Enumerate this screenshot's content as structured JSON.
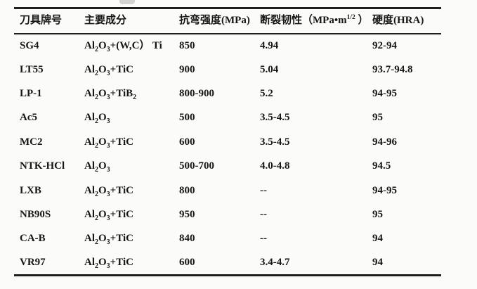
{
  "colors": {
    "background": "#fbfbf9",
    "text": "#161616",
    "line": "#1f1f1f",
    "artifact": "#c9c9c7"
  },
  "table": {
    "columns": [
      {
        "key": "brand",
        "label": "刀具牌号"
      },
      {
        "key": "composition",
        "label": "主要成分"
      },
      {
        "key": "strength",
        "label": "抗弯强度(MPa)"
      },
      {
        "key": "toughness",
        "label": "断裂韧性（MPa•m^1/2^ ）"
      },
      {
        "key": "hardness",
        "label": "硬度(HRA)"
      }
    ],
    "rows": [
      {
        "brand": "SG4",
        "composition": "Al~2~O~3~+(W,C） Ti",
        "strength": "850",
        "toughness": "4.94",
        "hardness": "92-94"
      },
      {
        "brand": "LT55",
        "composition": "Al~2~O~3~+TiC",
        "strength": "900",
        "toughness": "5.04",
        "hardness": "93.7-94.8"
      },
      {
        "brand": "LP-1",
        "composition": "Al~2~O~3~+TiB~2~",
        "strength": "800-900",
        "toughness": "5.2",
        "hardness": "94-95"
      },
      {
        "brand": "Ac5",
        "composition": "Al~2~O~3~",
        "strength": "500",
        "toughness": "3.5-4.5",
        "hardness": "95"
      },
      {
        "brand": "MC2",
        "composition": "Al~2~O~3~+TiC",
        "strength": "600",
        "toughness": "3.5-4.5",
        "hardness": "94-96"
      },
      {
        "brand": "NTK-HCl",
        "composition": "Al~2~O~3~",
        "strength": "500-700",
        "toughness": "4.0-4.8",
        "hardness": "94.5"
      },
      {
        "brand": "LXB",
        "composition": "Al~2~O~3~+TiC",
        "strength": "800",
        "toughness": "--",
        "hardness": "94-95"
      },
      {
        "brand": "NB90S",
        "composition": "Al~2~O~3~+TiC",
        "strength": "950",
        "toughness": "--",
        "hardness": "95"
      },
      {
        "brand": "CA-B",
        "composition": "Al~2~O~3~+TiC",
        "strength": "840",
        "toughness": "--",
        "hardness": "94"
      },
      {
        "brand": "VR97",
        "composition": "Al~2~O~3~+TiC",
        "strength": "600",
        "toughness": "3.4-4.7",
        "hardness": "94"
      }
    ]
  }
}
